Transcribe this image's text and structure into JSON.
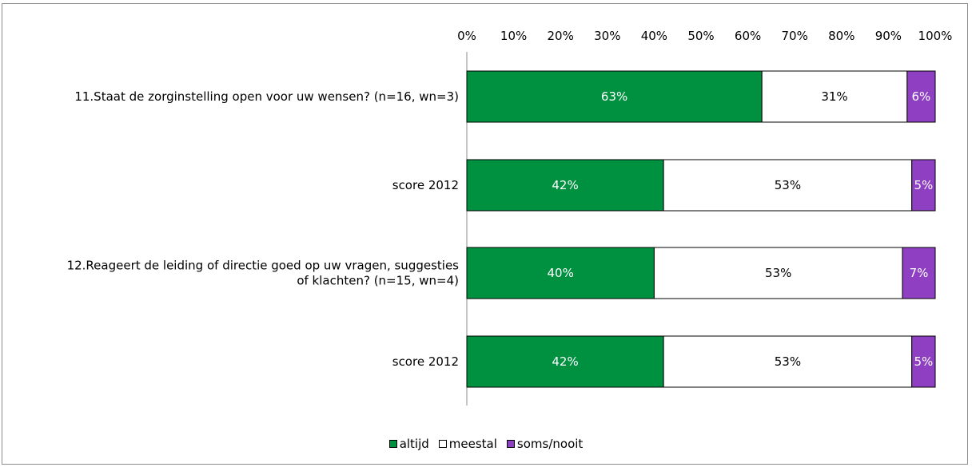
{
  "chart_data": {
    "type": "bar",
    "orientation": "horizontal",
    "stacked": true,
    "categories": [
      "11.Staat de zorginstelling open voor uw wensen? (n=16, wn=3)",
      "score 2012",
      "12.Reageert de leiding of directie goed op uw vragen, suggesties of klachten? (n=15, wn=4)",
      "score 2012"
    ],
    "category_lines": [
      [
        "11.Staat de zorginstelling open voor uw wensen? (n=16, wn=3)"
      ],
      [
        "score 2012"
      ],
      [
        "12.Reageert de leiding of directie goed op uw vragen, suggesties",
        "of klachten? (n=15, wn=4)"
      ],
      [
        "score 2012"
      ]
    ],
    "series": [
      {
        "name": "altijd",
        "values": [
          63,
          42,
          40,
          42
        ],
        "color": "#009140",
        "label_color": "#ffffff"
      },
      {
        "name": "meestal",
        "values": [
          31,
          53,
          53,
          53
        ],
        "color": "#ffffff",
        "label_color": "#000000"
      },
      {
        "name": "soms/nooit",
        "values": [
          6,
          5,
          7,
          5
        ],
        "color": "#8e3fc2",
        "label_color": "#ffffff"
      }
    ],
    "data_labels": [
      [
        "63%",
        "31%",
        "6%"
      ],
      [
        "42%",
        "53%",
        "5%"
      ],
      [
        "40%",
        "53%",
        "7%"
      ],
      [
        "42%",
        "53%",
        "5%"
      ]
    ],
    "xlim": [
      0,
      100
    ],
    "xticks": [
      0,
      10,
      20,
      30,
      40,
      50,
      60,
      70,
      80,
      90,
      100
    ],
    "xtick_labels": [
      "0%",
      "10%",
      "20%",
      "30%",
      "40%",
      "50%",
      "60%",
      "70%",
      "80%",
      "90%",
      "100%"
    ],
    "x_axis_position": "top",
    "grid": false,
    "legend_position": "bottom",
    "title": "",
    "xlabel": "",
    "ylabel": ""
  }
}
